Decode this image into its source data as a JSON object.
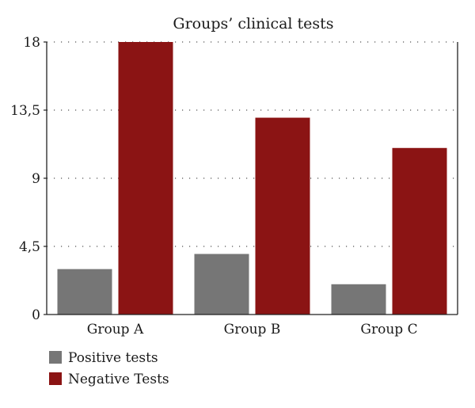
{
  "chart_data": {
    "type": "bar",
    "title": "Groups’ clinical tests",
    "categories": [
      "Group A",
      "Group B",
      "Group C"
    ],
    "series": [
      {
        "name": "Positive tests",
        "color": "#767676",
        "values": [
          3,
          4,
          2
        ]
      },
      {
        "name": "Negative Tests",
        "color": "#8b1414",
        "values": [
          18,
          13,
          11
        ]
      }
    ],
    "yticks": [
      0,
      4.5,
      9,
      13.5,
      18
    ],
    "ytick_labels": [
      "0",
      "4,5",
      "9",
      "13,5",
      "18"
    ],
    "ylim": [
      0,
      18
    ],
    "xlabel": "",
    "ylabel": "",
    "grid": "horizontal dotted",
    "legend_position": "bottom-left"
  }
}
